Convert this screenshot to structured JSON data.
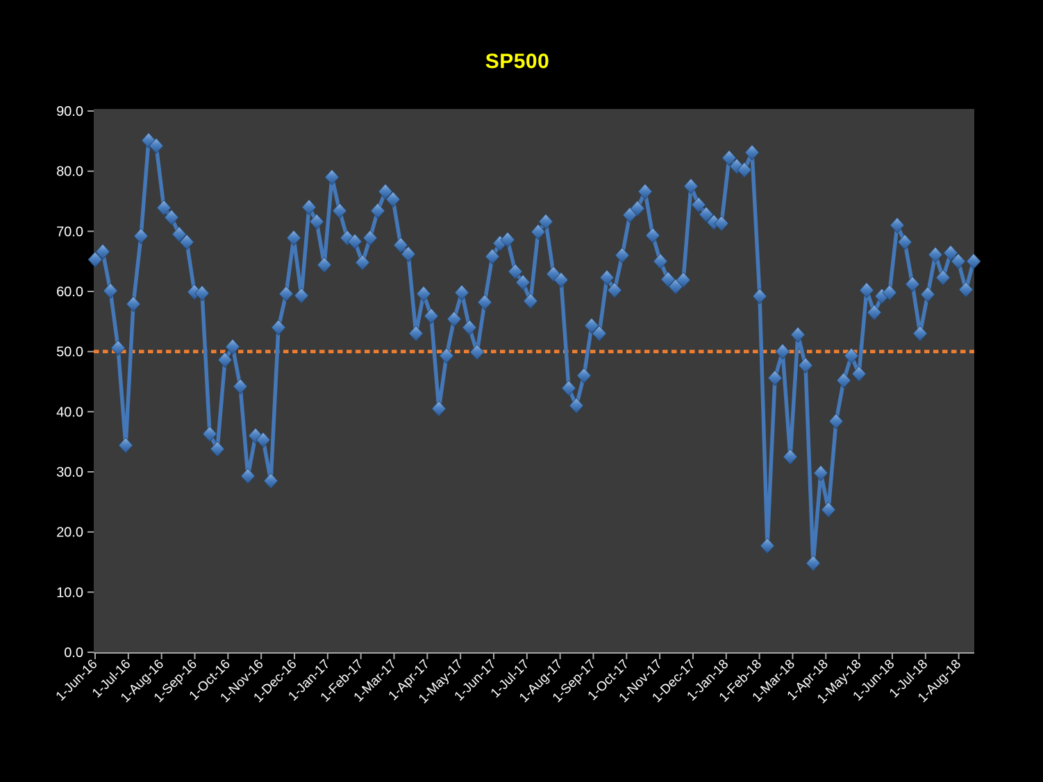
{
  "chart_data": {
    "type": "line",
    "title": "SP500",
    "legend": "none",
    "grid": "off",
    "plot_area_bg": "#3B3B3B",
    "page_bg": "#000000",
    "x_axis": {
      "tick_labels": [
        "1-Jun-16",
        "1-Jul-16",
        "1-Aug-16",
        "1-Sep-16",
        "1-Oct-16",
        "1-Nov-16",
        "1-Dec-16",
        "1-Jan-17",
        "1-Feb-17",
        "1-Mar-17",
        "1-Apr-17",
        "1-May-17",
        "1-Jun-17",
        "1-Jul-17",
        "1-Aug-17",
        "1-Sep-17",
        "1-Oct-17",
        "1-Nov-17",
        "1-Dec-17",
        "1-Jan-18",
        "1-Feb-18",
        "1-Mar-18",
        "1-Apr-18",
        "1-May-18",
        "1-Jun-18",
        "1-Jul-18",
        "1-Aug-18"
      ],
      "data_frequency": "weekly",
      "label_rotation_deg": -45
    },
    "y_axis": {
      "min": 0,
      "max": 90,
      "tick_step": 10,
      "tick_labels": [
        "0.0",
        "10.0",
        "20.0",
        "30.0",
        "40.0",
        "50.0",
        "60.0",
        "70.0",
        "80.0",
        "90.0"
      ]
    },
    "reference_line": {
      "value": 50.0,
      "style": "dotted",
      "color": "#ED7D31"
    },
    "series": [
      {
        "name": "SP500",
        "values": [
          65.3,
          66.6,
          60.1,
          50.6,
          34.4,
          57.9,
          69.2,
          85.1,
          84.2,
          73.9,
          72.3,
          69.5,
          68.2,
          59.9,
          59.7,
          36.3,
          33.8,
          48.6,
          50.8,
          44.2,
          29.3,
          36.0,
          35.3,
          28.5,
          54.0,
          59.6,
          68.9,
          59.3,
          74.0,
          71.6,
          64.4,
          79.0,
          73.4,
          68.9,
          68.3,
          64.8,
          68.9,
          73.4,
          76.6,
          75.3,
          67.7,
          66.2,
          53.0,
          59.6,
          55.9,
          40.5,
          49.3,
          55.4,
          59.8,
          54.0,
          49.9,
          58.2,
          65.8,
          68.0,
          68.6,
          63.3,
          61.5,
          58.4,
          69.9,
          71.6,
          62.9,
          61.9,
          43.9,
          41.0,
          46.0,
          54.3,
          53.0,
          62.3,
          60.2,
          66.0,
          72.7,
          73.8,
          76.6,
          69.3,
          65.0,
          62.0,
          60.8,
          61.9,
          77.5,
          74.4,
          72.8,
          71.5,
          71.3,
          82.2,
          80.8,
          80.2,
          83.1,
          59.2,
          17.7,
          45.6,
          50.0,
          32.5,
          52.8,
          47.7,
          14.8,
          29.8,
          23.7,
          38.4,
          45.2,
          49.3,
          46.3,
          60.2,
          56.5,
          59.2,
          59.8,
          71.0,
          68.2,
          61.2,
          53.0,
          59.5,
          66.1,
          62.3,
          66.4,
          65.0,
          60.3,
          65.0
        ]
      }
    ],
    "colors": {
      "title": "#FFFF00",
      "series_line": "#4478B8",
      "marker_light": "#8FB2DE",
      "marker_mid": "#4B80C0",
      "marker_dark": "#2B5795",
      "marker_edge": "#24486F",
      "reference_line": "#ED7D31",
      "axis_line": "#A6A6A6",
      "tick_label": "#FFFFFF"
    }
  }
}
